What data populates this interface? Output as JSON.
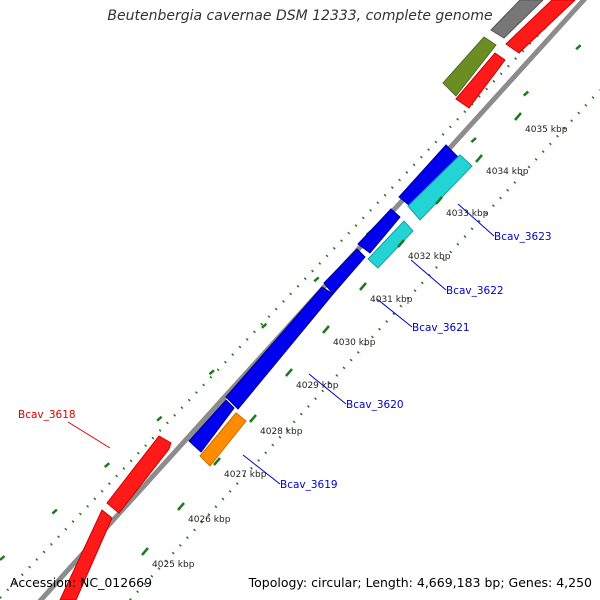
{
  "title": "Beutenbergia cavernae DSM 12333, complete genome",
  "footer": {
    "accession": "Accession: NC_012669",
    "summary": "Topology: circular; Length: 4,669,183 bp; Genes: 4,250"
  },
  "colors": {
    "backbone": "#8c8c8c",
    "tick_green": "#1e7a1e",
    "red_gene": "#ff1a1a",
    "blue_gene": "#0000ee",
    "cyan_gene": "#22d4d4",
    "orange_gene": "#ff8c00",
    "olive_gene": "#6b8e23",
    "gray_gene": "#777777",
    "label_blue": "#0000cc",
    "label_red": "#dd0000"
  },
  "scale_ticks": [
    {
      "label": "4025 kbp"
    },
    {
      "label": "4026 kbp"
    },
    {
      "label": "4027 kbp"
    },
    {
      "label": "4028 kbp"
    },
    {
      "label": "4029 kbp"
    },
    {
      "label": "4030 kbp"
    },
    {
      "label": "4031 kbp"
    },
    {
      "label": "4032 kbp"
    },
    {
      "label": "4033 kbp"
    },
    {
      "label": "4034 kbp"
    },
    {
      "label": "4035 kbp"
    }
  ],
  "gene_labels": [
    {
      "name": "Bcav_3618",
      "color": "#dd0000"
    },
    {
      "name": "Bcav_3619",
      "color": "#0000cc"
    },
    {
      "name": "Bcav_3620",
      "color": "#0000cc"
    },
    {
      "name": "Bcav_3621",
      "color": "#0000cc"
    },
    {
      "name": "Bcav_3622",
      "color": "#0000cc"
    },
    {
      "name": "Bcav_3623",
      "color": "#0000cc"
    }
  ]
}
